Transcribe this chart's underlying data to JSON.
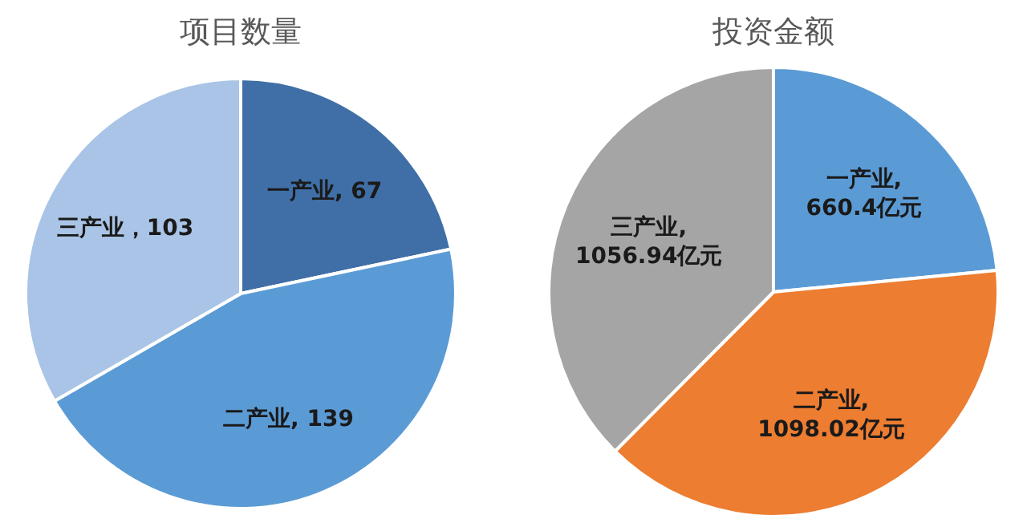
{
  "chart_data": [
    {
      "type": "pie",
      "title": "项目数量",
      "categories": [
        "一产业",
        "二产业",
        "三产业"
      ],
      "values": [
        67,
        139,
        103
      ],
      "colors": [
        "#3f6fa6",
        "#5b9bd5",
        "#a9c4e6"
      ],
      "value_labels": [
        ", 67",
        ", 139",
        "，103"
      ]
    },
    {
      "type": "pie",
      "title": "投资金额",
      "categories": [
        "一产业",
        "二产业",
        "三产业"
      ],
      "values": [
        660.4,
        1098.02,
        1056.94
      ],
      "colors": [
        "#5b9bd5",
        "#ed7d31",
        "#a5a5a5"
      ],
      "value_labels": [
        ",\n660.4亿元",
        ",\n1098.02亿元",
        ",\n1056.94亿元"
      ]
    }
  ]
}
